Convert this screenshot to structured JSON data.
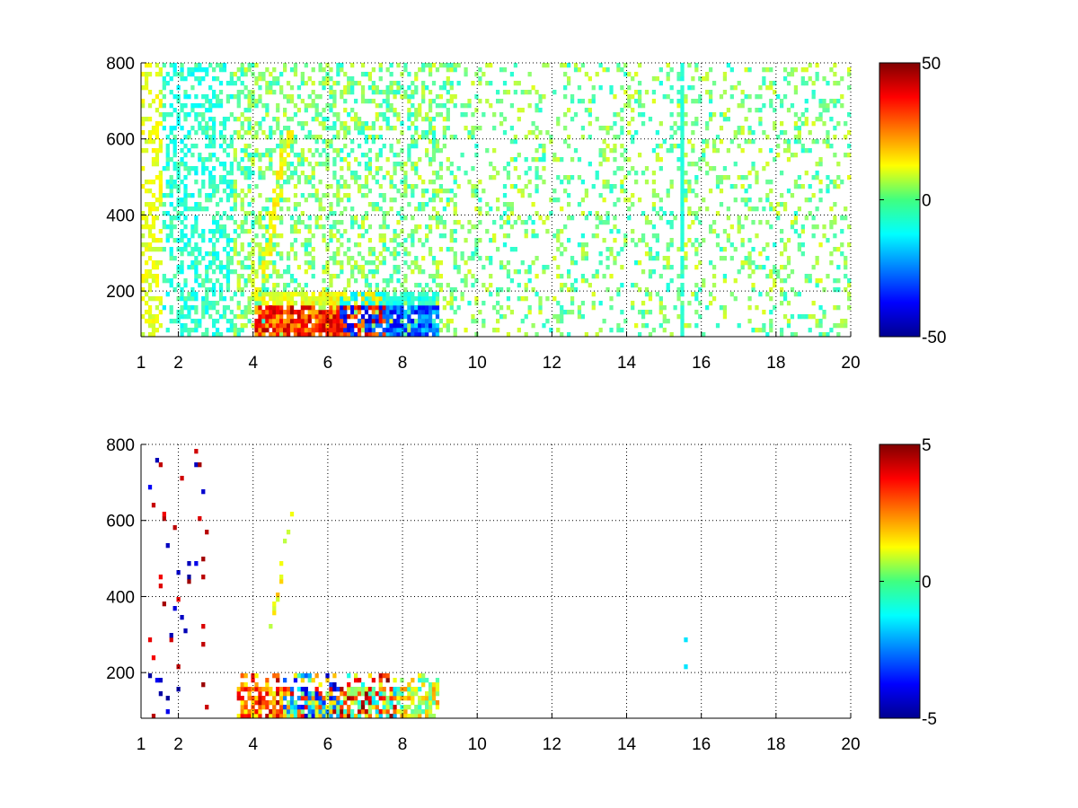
{
  "chart_data": [
    {
      "type": "heatmap",
      "title": "",
      "xlabel": "",
      "ylabel": "",
      "xlim": [
        1,
        20
      ],
      "ylim": [
        80,
        800
      ],
      "xticks": [
        1,
        2,
        4,
        6,
        8,
        10,
        12,
        14,
        16,
        18,
        20
      ],
      "xtick_labels": [
        "1",
        "2",
        "4",
        "6",
        "8",
        "10",
        "12",
        "14",
        "16",
        "18",
        "20"
      ],
      "yticks": [
        200,
        400,
        600,
        800
      ],
      "ytick_labels": [
        "200",
        "400",
        "600",
        "800"
      ],
      "grid": true,
      "colormap": "jet",
      "clim": [
        -50,
        50
      ],
      "colorbar_ticks": [
        50,
        0,
        -50
      ],
      "colorbar_tick_labels": [
        "50",
        "0",
        "-50"
      ],
      "features": [
        {
          "x": [
            4.0,
            9.0
          ],
          "y": [
            80,
            200
          ],
          "level": "mixed: positive at x 4-7.5, negative at x 6.5-9"
        },
        {
          "x": [
            4.2,
            5.0
          ],
          "y": [
            200,
            640
          ],
          "level": "slightly positive ridge"
        },
        {
          "x": [
            15.5,
            15.6
          ],
          "y": [
            80,
            800
          ],
          "level": "slightly negative column"
        }
      ]
    },
    {
      "type": "heatmap",
      "title": "",
      "xlabel": "",
      "ylabel": "",
      "xlim": [
        1,
        20
      ],
      "ylim": [
        80,
        800
      ],
      "xticks": [
        1,
        2,
        4,
        6,
        8,
        10,
        12,
        14,
        16,
        18,
        20
      ],
      "xtick_labels": [
        "1",
        "2",
        "4",
        "6",
        "8",
        "10",
        "12",
        "14",
        "16",
        "18",
        "20"
      ],
      "yticks": [
        200,
        400,
        600,
        800
      ],
      "ytick_labels": [
        "200",
        "400",
        "600",
        "800"
      ],
      "grid": true,
      "colormap": "jet",
      "clim": [
        -5,
        5
      ],
      "colorbar_ticks": [
        5,
        0,
        -5
      ],
      "colorbar_tick_labels": [
        "5",
        "0",
        "-5"
      ],
      "features": [
        {
          "x": [
            3.5,
            9.0
          ],
          "y": [
            80,
            200
          ],
          "level": "mixed positive and negative"
        },
        {
          "x": [
            4.5,
            5.0
          ],
          "y": [
            300,
            600
          ],
          "level": "slightly positive ridge"
        }
      ]
    }
  ]
}
